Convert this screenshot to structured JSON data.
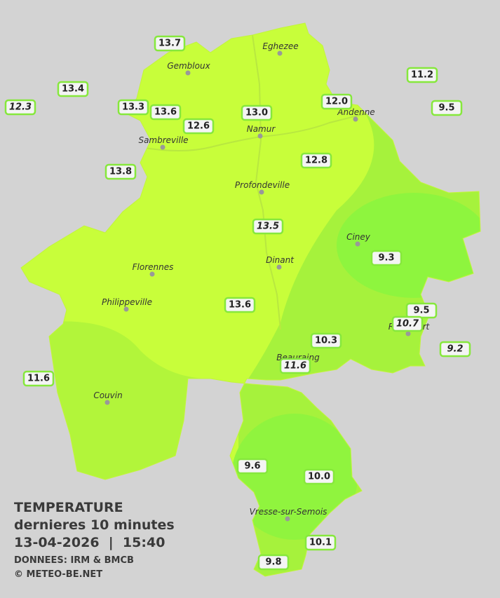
{
  "legend": {
    "title": "TEMPERATURE",
    "subtitle": "dernieres 10 minutes",
    "datetime": "13-04-2026  |  15:40",
    "source": "DONNEES: IRM & BMCB",
    "copyright": "© METEO-BE.NET"
  },
  "cities": [
    "Eghezee",
    "Gembloux",
    "Andenne",
    "Namur",
    "Sambreville",
    "Profondeville",
    "Ciney",
    "Dinant",
    "Florennes",
    "Philippeville",
    "Rochefort",
    "Beauraing",
    "Couvin",
    "Vresse-sur-Semois"
  ],
  "stations": [
    "13.7",
    "13.4",
    "12.3",
    "13.3",
    "13.6",
    "12.6",
    "13.0",
    "12.0",
    "11.2",
    "9.5",
    "13.8",
    "12.8",
    "13.5",
    "9.3",
    "13.6",
    "9.5",
    "10.7",
    "9.2",
    "10.3",
    "11.6",
    "11.6",
    "9.6",
    "10.0",
    "10.1",
    "9.8"
  ]
}
